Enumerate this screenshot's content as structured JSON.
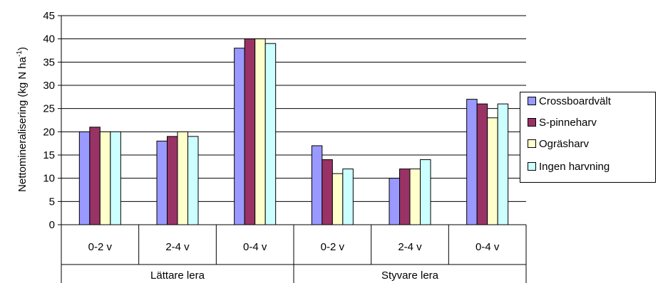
{
  "chart_data": {
    "type": "bar",
    "ylabel": "Nettomineralisering (kg N ha",
    "ylabel_sup": "-1",
    "ylabel_close": ")",
    "ylim": [
      0,
      45
    ],
    "yticks": [
      "0",
      "5",
      "10",
      "15",
      "20",
      "25",
      "30",
      "35",
      "40",
      "45"
    ],
    "grid": true,
    "legend_position": "right",
    "categories": [
      "0-2 v",
      "2-4 v",
      "0-4 v",
      "0-2 v",
      "2-4 v",
      "0-4 v"
    ],
    "groups": [
      "Lättare lera",
      "Styvare lera"
    ],
    "series": [
      {
        "name": "Crossboardvält",
        "color": "#9999ff",
        "values": [
          20,
          18,
          38,
          17,
          10,
          27
        ]
      },
      {
        "name": "S-pinneharv",
        "color": "#993366",
        "values": [
          21,
          19,
          40,
          14,
          12,
          26
        ]
      },
      {
        "name": "Ogräsharv",
        "color": "#ffffcc",
        "values": [
          20,
          20,
          40,
          11,
          12,
          23
        ]
      },
      {
        "name": "Ingen harvning",
        "color": "#ccffff",
        "values": [
          20,
          19,
          39,
          12,
          14,
          26
        ]
      }
    ]
  }
}
